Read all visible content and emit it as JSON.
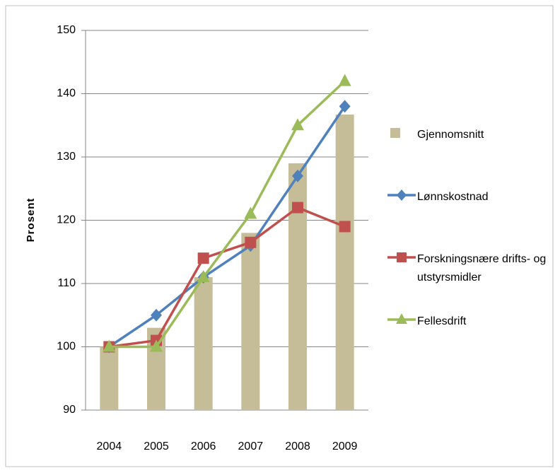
{
  "chart_data": {
    "type": "combo",
    "y_label": "Prosent",
    "categories": [
      "2004",
      "2005",
      "2006",
      "2007",
      "2008",
      "2009"
    ],
    "series": [
      {
        "name": "Gjennomsnitt",
        "type": "bar",
        "color": "#c4bd97",
        "values": [
          100,
          103,
          111,
          118,
          129,
          136.7
        ]
      },
      {
        "name": "Lønnskostnad",
        "type": "line",
        "marker": "diamond",
        "color": "#4f81bd",
        "values": [
          100,
          105,
          111,
          116,
          127,
          138
        ]
      },
      {
        "name": "Forskningsnære drifts- og utstyrsmidler",
        "type": "line",
        "marker": "square",
        "color": "#c0504d",
        "values": [
          100,
          101,
          114,
          116.5,
          122,
          119
        ]
      },
      {
        "name": "Fellesdrift",
        "type": "line",
        "marker": "triangle",
        "color": "#9bbb59",
        "values": [
          100,
          100,
          111,
          121,
          135,
          142
        ]
      }
    ],
    "ylim": [
      90,
      150
    ],
    "yticks": [
      90,
      100,
      110,
      120,
      130,
      140,
      150
    ],
    "grid": true
  }
}
